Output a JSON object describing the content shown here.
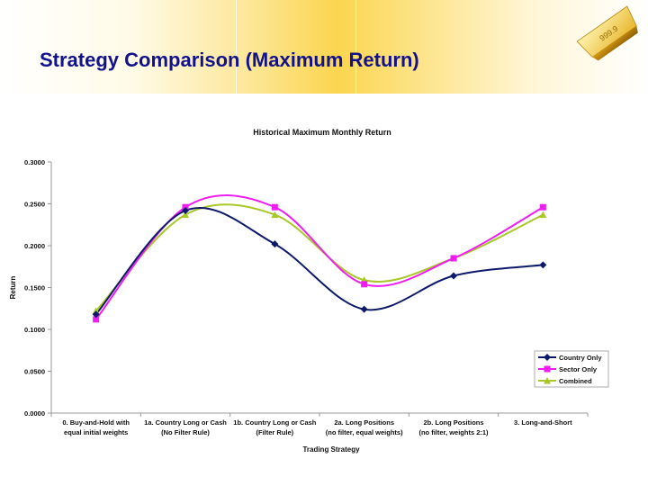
{
  "slide": {
    "title": "Strategy Comparison (Maximum Return)",
    "gold_bar_text": "999.9"
  },
  "chart_data": {
    "type": "line",
    "title": "Historical Maximum Monthly Return",
    "xlabel": "Trading Strategy",
    "ylabel": "Return",
    "categories": [
      [
        "0. Buy-and-Hold with",
        "equal initial weights"
      ],
      [
        "1a. Country Long or Cash",
        "(No Filter Rule)"
      ],
      [
        "1b. Country Long or Cash",
        "(Filter Rule)"
      ],
      [
        "2a. Long Positions",
        "(no filter, equal weights)"
      ],
      [
        "2b. Long Positions",
        "(no filter, weights 2:1)"
      ],
      [
        "3. Long-and-Short",
        ""
      ]
    ],
    "ylim": [
      0,
      0.3
    ],
    "yticks": [
      "0.0000",
      "0.0500",
      "0.1000",
      "0.1500",
      "0.2000",
      "0.2500",
      "0.3000"
    ],
    "smooth": true,
    "grid": false,
    "legend_position": "bottom-right",
    "series": [
      {
        "name": "Country Only",
        "color": "#0d1a6b",
        "marker": "diamond",
        "values": [
          0.118,
          0.242,
          0.202,
          0.124,
          0.164,
          0.177
        ]
      },
      {
        "name": "Sector Only",
        "color": "#ee1df0",
        "marker": "square",
        "values": [
          0.112,
          0.246,
          0.246,
          0.154,
          0.185,
          0.246
        ]
      },
      {
        "name": "Combined",
        "color": "#a9c72a",
        "marker": "triangle",
        "values": [
          0.122,
          0.237,
          0.237,
          0.159,
          0.185,
          0.237
        ]
      }
    ]
  }
}
